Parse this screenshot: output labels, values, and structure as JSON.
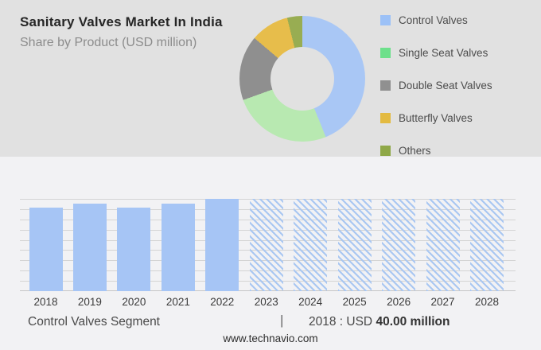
{
  "header": {
    "title": "Sanitary Valves Market In India",
    "subtitle": "Share by Product (USD million)"
  },
  "colors": {
    "top_background": "#e1e1e1",
    "bottom_background": "#f2f2f4",
    "bar_fill": "#a6c5f5",
    "hatch_stripe": "#a9c7f2",
    "gridline": "#d4d4d4",
    "axis_line": "#c6c6c6"
  },
  "chart_data": [
    {
      "type": "pie",
      "variant": "donut",
      "title": "Share by Product (USD million)",
      "labels": [
        "Control Valves",
        "Single Seat Valves",
        "Double Seat Valves",
        "Butterfly Valves",
        "Others"
      ],
      "values_percent": [
        43.9,
        25.6,
        16.7,
        9.9,
        3.9
      ],
      "colors": [
        "#a9c7f5",
        "#b8e9b1",
        "#8f8f8f",
        "#e7bd4b",
        "#98ad52"
      ],
      "legend_colors": [
        "#9cc1f7",
        "#6de08b",
        "#909090",
        "#e3ba41",
        "#8fa848"
      ],
      "legend_position": "right",
      "start_angle_deg": 0
    },
    {
      "type": "bar",
      "title": "Control Valves Segment (USD million)",
      "categories": [
        "2018",
        "2019",
        "2020",
        "2021",
        "2022",
        "2023",
        "2024",
        "2025",
        "2026",
        "2027",
        "2028"
      ],
      "values": [
        40.0,
        41.9,
        39.8,
        41.9,
        44.0,
        null,
        null,
        null,
        null,
        null,
        null
      ],
      "forecast_hatched": [
        "2023",
        "2024",
        "2025",
        "2026",
        "2027",
        "2028"
      ],
      "ylim": [
        0,
        44
      ],
      "gridline_count": 10,
      "grid": "horizontal",
      "legend_position": "none",
      "labeled_value": {
        "year": "2018",
        "text": "USD 40.00 million"
      }
    }
  ],
  "footer": {
    "segment_label": "Control Valves Segment",
    "separator": "|",
    "stat_prefix": "2018 : USD",
    "stat_value_bold": "40.00 million",
    "website": "www.technavio.com"
  }
}
